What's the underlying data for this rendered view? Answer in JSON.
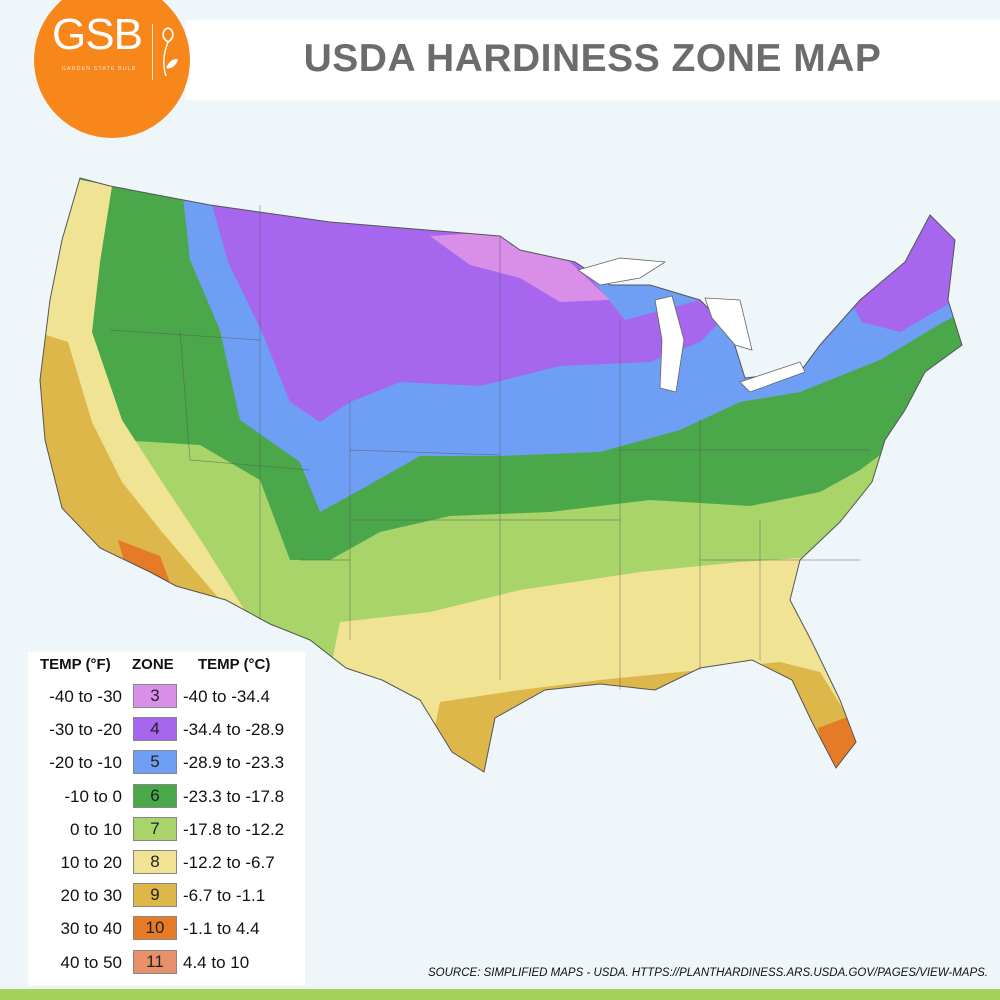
{
  "header": {
    "title": "USDA HARDINESS ZONE MAP"
  },
  "logo": {
    "text": "GSB",
    "subtitle": "GARDEN STATE BULB",
    "color": "#f7861b"
  },
  "legend": {
    "headers": {
      "temp_f": "TEMP (°F)",
      "zone": "ZONE",
      "temp_c": "TEMP (°C)"
    },
    "rows": [
      {
        "f": "-40 to -30",
        "zone": "3",
        "c": "-40 to -34.4",
        "color": "#d98ee8"
      },
      {
        "f": "-30 to -20",
        "zone": "4",
        "c": "-34.4 to -28.9",
        "color": "#a666ee"
      },
      {
        "f": "-20 to -10",
        "zone": "5",
        "c": "-28.9 to -23.3",
        "color": "#6f9ef5"
      },
      {
        "f": "-10 to 0",
        "zone": "6",
        "c": "-23.3 to -17.8",
        "color": "#4aa84a"
      },
      {
        "f": "0 to 10",
        "zone": "7",
        "c": "-17.8 to -12.2",
        "color": "#a8d46a"
      },
      {
        "f": "10 to 20",
        "zone": "8",
        "c": "-12.2 to -6.7",
        "color": "#f1e394"
      },
      {
        "f": "20 to 30",
        "zone": "9",
        "c": "-6.7 to -1.1",
        "color": "#ddb74a"
      },
      {
        "f": "30 to 40",
        "zone": "10",
        "c": "-1.1 to 4.4",
        "color": "#e57b27"
      },
      {
        "f": "40 to 50",
        "zone": "11",
        "c": "4.4 to 10",
        "color": "#e8906a"
      }
    ]
  },
  "source": "SOURCE: SIMPLIFIED MAPS - USDA. HTTPS://PLANTHARDINESS.ARS.USDA.GOV/PAGES/VIEW-MAPS.",
  "footer_color": "#a3d35b"
}
